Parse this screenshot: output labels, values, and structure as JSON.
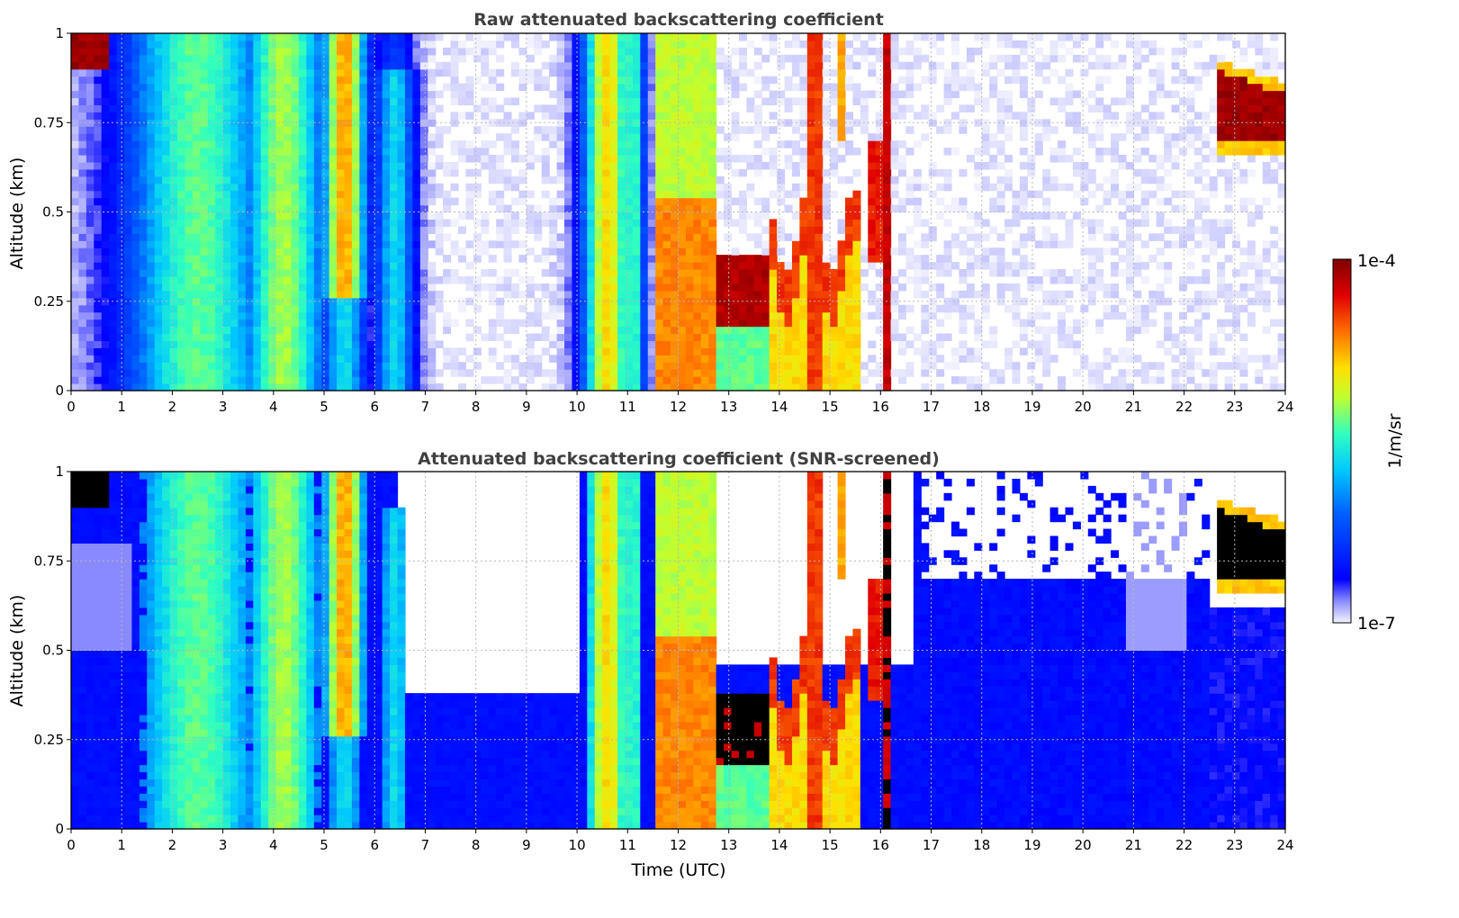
{
  "chart_data": [
    {
      "type": "heatmap",
      "title": "Raw attenuated backscattering coefficient",
      "xlabel": "",
      "ylabel": "Altitude (km)",
      "xlim": [
        0,
        24
      ],
      "ylim": [
        0,
        1
      ],
      "x_ticks": [
        "0",
        "1",
        "2",
        "3",
        "4",
        "5",
        "6",
        "7",
        "8",
        "9",
        "10",
        "11",
        "12",
        "13",
        "14",
        "15",
        "16",
        "17",
        "18",
        "19",
        "20",
        "21",
        "22",
        "23",
        "24"
      ],
      "y_ticks": [
        "0",
        "0.25",
        "0.5",
        "0.75",
        "1"
      ],
      "grid": true,
      "features": [
        {
          "t0": 0.0,
          "t1": 6.2,
          "alt_top": 1.0,
          "level": "medium-high"
        },
        {
          "t0": 5.0,
          "t1": 6.0,
          "alt_top": 1.0,
          "level": "high"
        },
        {
          "t0": 10.0,
          "t1": 11.4,
          "alt_top": 1.0,
          "level": "high"
        },
        {
          "t0": 11.5,
          "t1": 12.6,
          "alt_top": 1.0,
          "level": "high"
        },
        {
          "t0": 12.5,
          "t1": 13.8,
          "alt_top": 0.35,
          "level": "very-high"
        },
        {
          "t0": 13.8,
          "t1": 15.6,
          "alt_top": 0.6,
          "level": "high"
        },
        {
          "t0": 16.0,
          "t1": 16.3,
          "alt_top": 1.0,
          "level": "very-high"
        },
        {
          "t0": 22.6,
          "t1": 24.0,
          "alt_top": 0.95,
          "alt_bottom": 0.66,
          "level": "very-high"
        }
      ]
    },
    {
      "type": "heatmap",
      "title": "Attenuated backscattering coefficient (SNR-screened)",
      "xlabel": "Time (UTC)",
      "ylabel": "Altitude (km)",
      "xlim": [
        0,
        24
      ],
      "ylim": [
        0,
        1
      ],
      "x_ticks": [
        "0",
        "1",
        "2",
        "3",
        "4",
        "5",
        "6",
        "7",
        "8",
        "9",
        "10",
        "11",
        "12",
        "13",
        "14",
        "15",
        "16",
        "17",
        "18",
        "19",
        "20",
        "21",
        "22",
        "23",
        "24"
      ],
      "y_ticks": [
        "0",
        "0.25",
        "0.5",
        "0.75",
        "1"
      ],
      "grid": true,
      "colorbar": {
        "min_label": "1e-7",
        "max_label": "1e-4",
        "label": "1/m/sr",
        "scale": "log"
      },
      "features": [
        {
          "t0": 0.0,
          "t1": 6.2,
          "alt_top": 1.0,
          "level": "medium-high"
        },
        {
          "t0": 10.0,
          "t1": 11.4,
          "alt_top": 1.0,
          "level": "high"
        },
        {
          "t0": 12.5,
          "t1": 13.8,
          "alt_top": 0.35,
          "level": "saturated"
        },
        {
          "t0": 22.6,
          "t1": 24.0,
          "alt_top": 0.95,
          "alt_bottom": 0.66,
          "level": "saturated"
        }
      ]
    }
  ]
}
